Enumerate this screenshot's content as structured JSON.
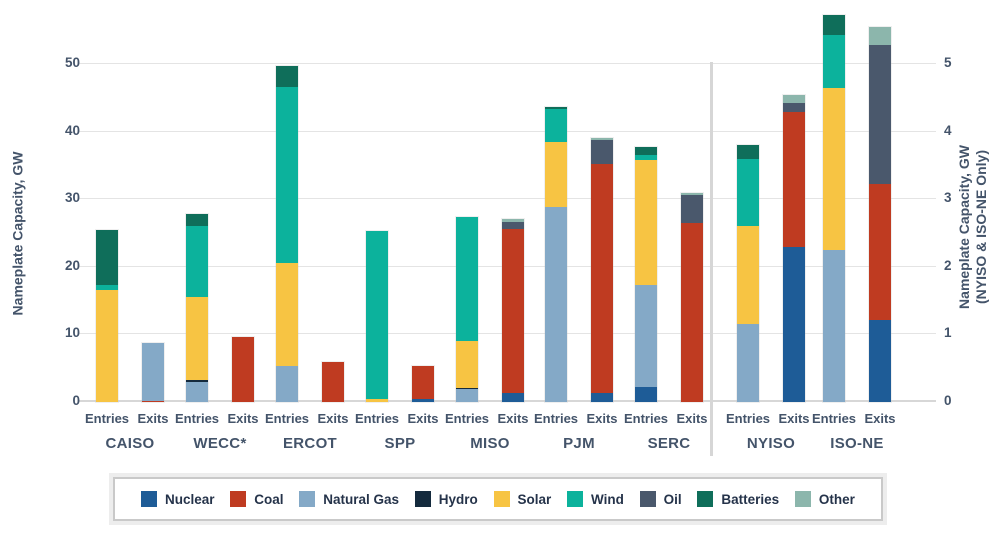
{
  "axes": {
    "left": {
      "label": "Nameplate Capacity, GW",
      "ticks": [
        0,
        10,
        20,
        30,
        40,
        50
      ]
    },
    "right": {
      "label_line1": "Nameplate Capacity, GW",
      "label_line2": "(NYISO & ISO-NE Only)",
      "ticks": [
        0,
        1,
        2,
        3,
        4,
        5
      ]
    }
  },
  "legend": [
    {
      "name": "Nuclear",
      "color": "#1e5c97"
    },
    {
      "name": "Coal",
      "color": "#bf3b21"
    },
    {
      "name": "Natural Gas",
      "color": "#84a9c7"
    },
    {
      "name": "Hydro",
      "color": "#142a3d"
    },
    {
      "name": "Solar",
      "color": "#f7c443"
    },
    {
      "name": "Wind",
      "color": "#0cb29c"
    },
    {
      "name": "Oil",
      "color": "#4a586c"
    },
    {
      "name": "Batteries",
      "color": "#0f6e5a"
    },
    {
      "name": "Other",
      "color": "#8cb6ac"
    }
  ],
  "chart_data": {
    "type": "bar",
    "stacked": true,
    "bar_labels": [
      "Entries",
      "Exits"
    ],
    "units": "GW",
    "left_axis_range": [
      0,
      50
    ],
    "right_axis_range": [
      0,
      5
    ],
    "grid": true,
    "regions": [
      {
        "name": "CAISO",
        "axis": "left",
        "entries": {
          "Solar": 16.6,
          "Wind": 0.7,
          "Batteries": 8.1
        },
        "exits": {
          "Coal": 0.2,
          "Natural Gas": 8.5
        }
      },
      {
        "name": "WECC*",
        "axis": "left",
        "entries": {
          "Natural Gas": 3.0,
          "Hydro": 0.2,
          "Solar": 12.3,
          "Wind": 10.6,
          "Batteries": 1.8
        },
        "exits": {
          "Coal": 9.6
        }
      },
      {
        "name": "ERCOT",
        "axis": "left",
        "entries": {
          "Natural Gas": 5.3,
          "Solar": 15.3,
          "Wind": 26.0,
          "Batteries": 3.2
        },
        "exits": {
          "Coal": 5.9
        }
      },
      {
        "name": "SPP",
        "axis": "left",
        "entries": {
          "Solar": 0.5,
          "Wind": 24.8
        },
        "exits": {
          "Nuclear": 0.45,
          "Coal": 4.85
        }
      },
      {
        "name": "MISO",
        "axis": "left",
        "entries": {
          "Natural Gas": 1.9,
          "Hydro": 0.2,
          "Solar": 7.0,
          "Wind": 18.3
        },
        "exits": {
          "Nuclear": 1.4,
          "Coal": 24.2,
          "Oil": 1.1,
          "Other": 0.4
        }
      },
      {
        "name": "PJM",
        "axis": "left",
        "entries": {
          "Natural Gas": 28.8,
          "Solar": 9.7,
          "Wind": 4.9,
          "Batteries": 0.3
        },
        "exits": {
          "Nuclear": 1.4,
          "Coal": 33.8,
          "Oil": 3.6,
          "Other": 0.3
        }
      },
      {
        "name": "SERC",
        "axis": "left",
        "entries": {
          "Nuclear": 2.2,
          "Natural Gas": 15.1,
          "Solar": 18.5,
          "Wind": 0.8,
          "Batteries": 1.1
        },
        "exits": {
          "Coal": 26.5,
          "Oil": 4.1,
          "Other": 0.3
        }
      },
      {
        "name": "NYISO",
        "axis": "right",
        "entries": {
          "Natural Gas": 1.15,
          "Solar": 1.45,
          "Wind": 1.0,
          "Batteries": 0.2
        },
        "exits": {
          "Nuclear": 2.3,
          "Coal": 2.0,
          "Oil": 0.12,
          "Other": 0.12
        }
      },
      {
        "name": "ISO-NE",
        "axis": "right",
        "entries": {
          "Natural Gas": 2.25,
          "Solar": 2.4,
          "Wind": 0.78,
          "Batteries": 0.3
        },
        "exits": {
          "Nuclear": 1.21,
          "Coal": 2.02,
          "Oil": 2.05,
          "Other": 0.27
        }
      }
    ]
  }
}
